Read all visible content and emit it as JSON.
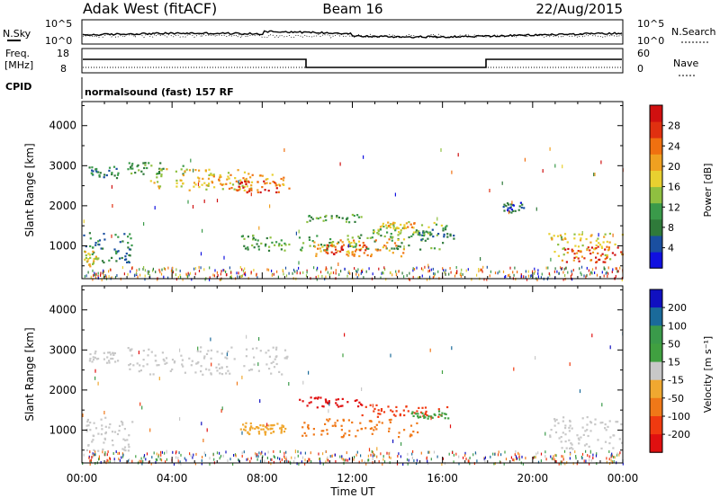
{
  "header": {
    "title": "Adak West (fitACF)",
    "beam": "Beam 16",
    "date": "22/Aug/2015"
  },
  "top_panels": {
    "nsky_label": "N.Sky",
    "nsky_ticks": [
      "10^5",
      "10^0"
    ],
    "nsearch_label": "N.Search",
    "nsearch_ticks": [
      "10^5",
      "10^0"
    ],
    "freq_label": "Freq.",
    "freq_unit": "[MHz]",
    "freq_ticks": [
      "18",
      "8"
    ],
    "nave_label": "Nave",
    "nave_ticks": [
      "60",
      "0"
    ],
    "cpid_label": "CPID",
    "cpid_text": "normalsound (fast) 157 RF"
  },
  "colors": {
    "power": [
      "#1010e0",
      "#1a4fa0",
      "#2f7a3a",
      "#3a9a4a",
      "#8fc040",
      "#e8d030",
      "#f0a020",
      "#f07010",
      "#e03010",
      "#d01010"
    ],
    "velocity": [
      "#e01010",
      "#f03a10",
      "#f07818",
      "#f0a830",
      "#c8c8c8",
      "#40a040",
      "#3a9a4a",
      "#1a6a9a",
      "#1010c0"
    ]
  },
  "chart_data": [
    {
      "type": "heatmap",
      "name": "power",
      "title": "",
      "ylabel": "Slant Range [km]",
      "xlabel": "",
      "x_ticks": [
        "00:00",
        "04:00",
        "08:00",
        "12:00",
        "16:00",
        "20:00",
        "00:00"
      ],
      "xlim_hours": [
        0,
        24
      ],
      "y_ticks": [
        1000,
        2000,
        3000,
        4000
      ],
      "ylim_km": [
        180,
        4600
      ],
      "colorbar": {
        "label": "Power [dB]",
        "ticks": [
          4,
          8,
          12,
          16,
          20,
          24,
          28
        ],
        "range": [
          0,
          30
        ]
      },
      "regions": [
        {
          "t0": 0.3,
          "t1": 1.6,
          "r0": 2700,
          "r1": 3000,
          "level": 2
        },
        {
          "t0": 2.0,
          "t1": 4.5,
          "r0": 2800,
          "r1": 3100,
          "level": 3
        },
        {
          "t0": 3.0,
          "t1": 7.5,
          "r0": 2400,
          "r1": 2950,
          "level": 5
        },
        {
          "t0": 5.5,
          "t1": 9.2,
          "r0": 2400,
          "r1": 2800,
          "level": 6
        },
        {
          "t0": 6.8,
          "t1": 8.8,
          "r0": 2350,
          "r1": 2650,
          "level": 8
        },
        {
          "t0": 0.0,
          "t1": 2.2,
          "r0": 600,
          "r1": 1350,
          "level": 2
        },
        {
          "t0": 0.0,
          "t1": 0.7,
          "r0": 500,
          "r1": 900,
          "level": 5
        },
        {
          "t0": 7.0,
          "t1": 9.2,
          "r0": 900,
          "r1": 1300,
          "level": 3
        },
        {
          "t0": 9.8,
          "t1": 12.4,
          "r0": 1600,
          "r1": 1800,
          "level": 3
        },
        {
          "t0": 12.8,
          "t1": 16.2,
          "r0": 1300,
          "r1": 1650,
          "level": 4
        },
        {
          "t0": 13.2,
          "t1": 14.8,
          "r0": 1450,
          "r1": 1620,
          "level": 6
        },
        {
          "t0": 9.6,
          "t1": 16.0,
          "r0": 900,
          "r1": 1300,
          "level": 3
        },
        {
          "t0": 10.2,
          "t1": 14.4,
          "r0": 750,
          "r1": 1200,
          "level": 6
        },
        {
          "t0": 10.6,
          "t1": 12.6,
          "r0": 800,
          "r1": 1050,
          "level": 8
        },
        {
          "t0": 14.8,
          "t1": 16.5,
          "r0": 1150,
          "r1": 1450,
          "level": 2
        },
        {
          "t0": 20.6,
          "t1": 24.0,
          "r0": 650,
          "r1": 1350,
          "level": 5
        },
        {
          "t0": 21.4,
          "t1": 24.0,
          "r0": 600,
          "r1": 1000,
          "level": 8
        },
        {
          "t0": 18.6,
          "t1": 19.6,
          "r0": 1850,
          "r1": 2100,
          "level": 1
        }
      ]
    },
    {
      "type": "heatmap",
      "name": "velocity",
      "title": "",
      "ylabel": "Slant Range [km]",
      "xlabel": "Time UT",
      "x_ticks": [
        "00:00",
        "04:00",
        "08:00",
        "12:00",
        "16:00",
        "20:00",
        "00:00"
      ],
      "xlim_hours": [
        0,
        24
      ],
      "y_ticks": [
        1000,
        2000,
        3000,
        4000
      ],
      "ylim_km": [
        180,
        4600
      ],
      "colorbar": {
        "label": "Velocity [m s⁻¹]",
        "ticks": [
          "200",
          "100",
          "50",
          "15",
          "-15",
          "-50",
          "-100",
          "-200"
        ],
        "range": [
          -250,
          250
        ]
      },
      "regions": [
        {
          "t0": 0.3,
          "t1": 1.6,
          "r0": 2700,
          "r1": 3000,
          "level": 4
        },
        {
          "t0": 2.0,
          "t1": 9.2,
          "r0": 2400,
          "r1": 3100,
          "level": 4
        },
        {
          "t0": 0.0,
          "t1": 2.2,
          "r0": 500,
          "r1": 1350,
          "level": 4
        },
        {
          "t0": 7.0,
          "t1": 9.0,
          "r0": 900,
          "r1": 1200,
          "level": 3
        },
        {
          "t0": 9.6,
          "t1": 12.4,
          "r0": 1550,
          "r1": 1850,
          "level": 0
        },
        {
          "t0": 12.4,
          "t1": 16.2,
          "r0": 1350,
          "r1": 1650,
          "level": 1
        },
        {
          "t0": 14.6,
          "t1": 16.4,
          "r0": 1300,
          "r1": 1500,
          "level": 5
        },
        {
          "t0": 9.6,
          "t1": 15.0,
          "r0": 850,
          "r1": 1300,
          "level": 2
        },
        {
          "t0": 7.2,
          "t1": 9.0,
          "r0": 950,
          "r1": 1150,
          "level": 3
        },
        {
          "t0": 20.6,
          "t1": 24.0,
          "r0": 550,
          "r1": 1350,
          "level": 4
        }
      ]
    }
  ]
}
